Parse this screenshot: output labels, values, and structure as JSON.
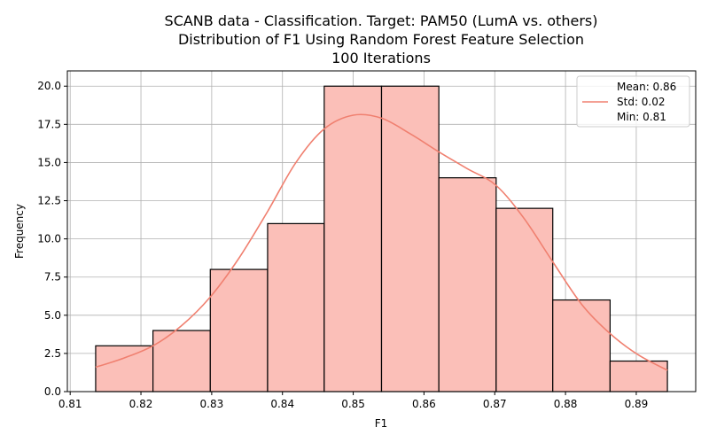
{
  "chart_data": {
    "type": "bar",
    "title_lines": [
      "SCANB data - Classification. Target: PAM50 (LumA vs. others)",
      "Distribution of F1 Using Random Forest Feature Selection",
      "100 Iterations"
    ],
    "xlabel": "F1",
    "ylabel": "Frequency",
    "xlim": [
      0.8096,
      0.8984
    ],
    "ylim": [
      0,
      21
    ],
    "x_ticks": [
      0.81,
      0.82,
      0.83,
      0.84,
      0.85,
      0.86,
      0.87,
      0.88,
      0.89
    ],
    "y_ticks": [
      0.0,
      2.5,
      5.0,
      7.5,
      10.0,
      12.5,
      15.0,
      17.5,
      20.0
    ],
    "bins": [
      {
        "x0": 0.8136,
        "x1": 0.8217,
        "value": 3
      },
      {
        "x0": 0.8217,
        "x1": 0.8298,
        "value": 4
      },
      {
        "x0": 0.8298,
        "x1": 0.8379,
        "value": 8
      },
      {
        "x0": 0.8379,
        "x1": 0.8459,
        "value": 11
      },
      {
        "x0": 0.8459,
        "x1": 0.854,
        "value": 20
      },
      {
        "x0": 0.854,
        "x1": 0.8621,
        "value": 20
      },
      {
        "x0": 0.8621,
        "x1": 0.8702,
        "value": 14
      },
      {
        "x0": 0.8702,
        "x1": 0.8782,
        "value": 12
      },
      {
        "x0": 0.8782,
        "x1": 0.8863,
        "value": 6
      },
      {
        "x0": 0.8863,
        "x1": 0.8944,
        "value": 2
      }
    ],
    "kde": {
      "x": [
        0.8136,
        0.8176,
        0.8217,
        0.8257,
        0.8298,
        0.8338,
        0.8379,
        0.8419,
        0.8459,
        0.85,
        0.854,
        0.858,
        0.8621,
        0.8661,
        0.8702,
        0.8742,
        0.8782,
        0.8823,
        0.8863,
        0.8903,
        0.8944
      ],
      "y": [
        1.6,
        2.2,
        3.0,
        4.3,
        6.2,
        8.7,
        11.8,
        15.0,
        17.2,
        18.1,
        17.9,
        16.9,
        15.7,
        14.6,
        13.5,
        11.3,
        8.5,
        5.7,
        3.8,
        2.4,
        1.4
      ]
    },
    "grid": true,
    "legend_position": "top-right",
    "legend": [
      "Mean: 0.86",
      "Std: 0.02",
      "Min: 0.81"
    ],
    "colors": {
      "bar_fill": "#fbbfb8",
      "bar_edge": "#000000",
      "kde_line": "#f08070",
      "grid": "#b0b0b0"
    }
  }
}
